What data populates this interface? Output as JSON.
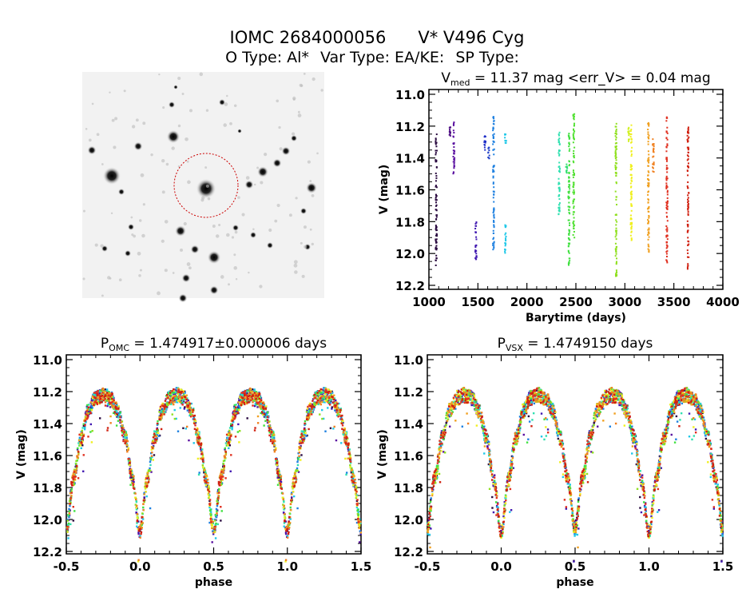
{
  "header": {
    "title_id": "IOMC 2684000056",
    "title_name": "V* V496 Cyg",
    "otype_label": "O Type: Al*",
    "vartype_label": "Var Type: EA/KE:",
    "sptype_label": "SP Type:"
  },
  "finder": {
    "marker_color": "#cc0000"
  },
  "chart_data": [
    {
      "type": "scatter",
      "id": "lightcurve",
      "title_v": "V",
      "title_sub": "med",
      "title_rest": " = 11.37 mag <err_V> = 0.04 mag",
      "xlabel": "Barytime (days)",
      "ylabel": "V (mag)",
      "xlim": [
        1000,
        4000
      ],
      "ylim": [
        10.97,
        12.225
      ],
      "y_inverted": true,
      "xticks": [
        "1000",
        "1500",
        "2000",
        "2500",
        "3000",
        "3500",
        "4000"
      ],
      "yticks": [
        "11.0",
        "11.2",
        "11.4",
        "11.6",
        "11.8",
        "12.0",
        "12.2"
      ],
      "segments": [
        {
          "t": 1075,
          "min": 11.25,
          "max": 12.08,
          "color": "#2a0a40"
        },
        {
          "t": 1215,
          "min": 11.2,
          "max": 11.28,
          "color": "#4b0a82"
        },
        {
          "t": 1255,
          "min": 11.16,
          "max": 11.5,
          "color": "#5a10a0"
        },
        {
          "t": 1480,
          "min": 11.8,
          "max": 12.04,
          "color": "#4018b0"
        },
        {
          "t": 1572,
          "min": 11.25,
          "max": 11.35,
          "color": "#2030c8"
        },
        {
          "t": 1612,
          "min": 11.33,
          "max": 11.41,
          "color": "#2040c8"
        },
        {
          "t": 1660,
          "min": 11.14,
          "max": 12.0,
          "color": "#1e80e0"
        },
        {
          "t": 1782,
          "min": 11.25,
          "max": 11.31,
          "color": "#20c8e8"
        },
        {
          "t": 1782,
          "min": 11.82,
          "max": 12.0,
          "color": "#20c8e8"
        },
        {
          "t": 2330,
          "min": 11.24,
          "max": 11.78,
          "color": "#30e0b0"
        },
        {
          "t": 2405,
          "min": 11.44,
          "max": 11.5,
          "color": "#30e070"
        },
        {
          "t": 2430,
          "min": 11.22,
          "max": 12.08,
          "color": "#40e040"
        },
        {
          "t": 2478,
          "min": 11.12,
          "max": 11.9,
          "color": "#50e030"
        },
        {
          "t": 2910,
          "min": 11.17,
          "max": 12.16,
          "color": "#90e020"
        },
        {
          "t": 3040,
          "min": 11.21,
          "max": 11.3,
          "color": "#d0f020"
        },
        {
          "t": 3065,
          "min": 11.17,
          "max": 11.92,
          "color": "#f0f020"
        },
        {
          "t": 3240,
          "min": 11.18,
          "max": 12.0,
          "color": "#f0a020"
        },
        {
          "t": 3290,
          "min": 11.28,
          "max": 11.5,
          "color": "#f08020"
        },
        {
          "t": 3430,
          "min": 11.13,
          "max": 12.07,
          "color": "#e03020"
        },
        {
          "t": 3645,
          "min": 11.2,
          "max": 12.1,
          "color": "#d02010"
        }
      ]
    },
    {
      "type": "scatter",
      "id": "phase-omc",
      "title_p": "P",
      "title_sub": "OMC",
      "title_rest": " = 1.474917±0.000006 days",
      "xlabel": "phase",
      "ylabel": "V (mag)",
      "xlim": [
        -0.5,
        1.5
      ],
      "ylim": [
        10.97,
        12.215
      ],
      "y_inverted": true,
      "xticks": [
        "-0.5",
        "0.0",
        "0.5",
        "1.0",
        "1.5"
      ],
      "yticks": [
        "11.0",
        "11.2",
        "11.4",
        "11.6",
        "11.8",
        "12.0",
        "12.2"
      ]
    },
    {
      "type": "scatter",
      "id": "phase-vsx",
      "title_p": "P",
      "title_sub": "VSX",
      "title_rest": " = 1.4749150 days",
      "xlabel": "phase",
      "ylabel": "V (mag)",
      "xlim": [
        -0.5,
        1.5
      ],
      "ylim": [
        10.97,
        12.215
      ],
      "y_inverted": true,
      "xticks": [
        "-0.5",
        "0.0",
        "0.5",
        "1.0",
        "1.5"
      ],
      "yticks": [
        "11.0",
        "11.2",
        "11.4",
        "11.6",
        "11.8",
        "12.0",
        "12.2"
      ]
    }
  ],
  "phase_model": {
    "phase": [
      0,
      0.05,
      0.1,
      0.15,
      0.2,
      0.25,
      0.3,
      0.35,
      0.4,
      0.45,
      0.5,
      0.55,
      0.6,
      0.65,
      0.7,
      0.75,
      0.8,
      0.85,
      0.9,
      0.95,
      1.0
    ],
    "mag": [
      12.08,
      11.75,
      11.49,
      11.32,
      11.24,
      11.22,
      11.24,
      11.32,
      11.49,
      11.75,
      12.06,
      11.74,
      11.49,
      11.32,
      11.24,
      11.22,
      11.24,
      11.32,
      11.49,
      11.75,
      12.08
    ],
    "season_colors": [
      "#2a0a40",
      "#5a10a0",
      "#4018b0",
      "#1e80e0",
      "#20c8e8",
      "#30e0b0",
      "#40e040",
      "#90e020",
      "#f0f020",
      "#f0a020",
      "#f08020",
      "#e03020",
      "#d02010"
    ]
  }
}
